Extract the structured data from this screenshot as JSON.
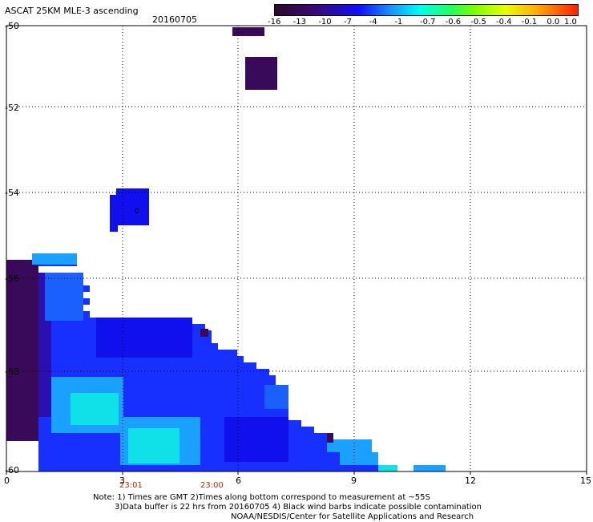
{
  "title": "ASCAT 25KM MLE-3 ascending",
  "date": "20160705",
  "colorbar": {
    "labels": [
      "-16",
      "-13",
      "-10",
      "-7",
      "-4",
      "-1",
      "-0.7",
      "-0.6",
      "-0.5",
      "-0.4",
      "-0.1",
      "0.0",
      "1.0"
    ],
    "colors": [
      "#2a0a2a",
      "#3a0a6a",
      "#1010ff",
      "#1890ff",
      "#00ffee",
      "#20ff60",
      "#80ff00",
      "#e8ff00",
      "#ffb000",
      "#ff2000"
    ]
  },
  "axes": {
    "x_ticks": [
      "0",
      "3",
      "6",
      "9",
      "12",
      "15"
    ],
    "y_ticks": [
      "-50",
      "-52",
      "-54",
      "-56",
      "-58",
      "-60"
    ],
    "xlim": [
      0,
      15
    ],
    "ylim": [
      -60,
      -50
    ]
  },
  "time_labels": [
    "23:01",
    "23:00"
  ],
  "annotation_mark": "0",
  "notes": [
    "Note: 1) Times are GMT 2)Times along bottom correspond to measurement at ~55S",
    "3)Data buffer is 22 hrs from 20160705 4) Black wind barbs indicate possible contamination",
    "NOAA/NESDIS/Center for Satellite Applications and Research"
  ]
}
